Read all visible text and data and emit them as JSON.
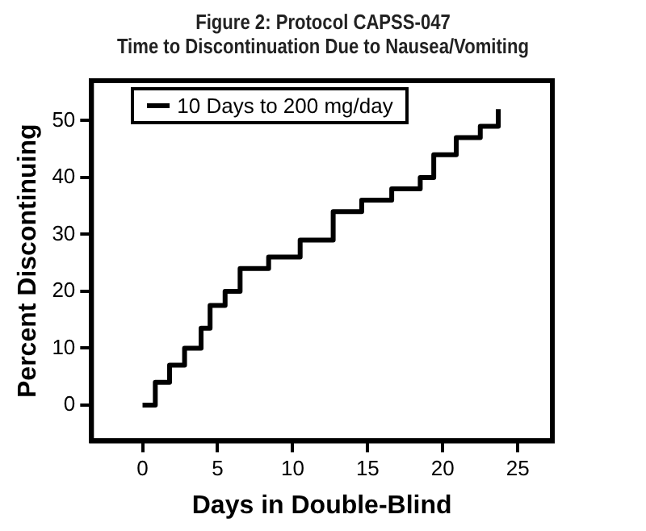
{
  "chart_data": {
    "type": "step",
    "title": "Figure 2:  Protocol CAPSS-047",
    "subtitle": "Time to Discontinuation Due to Nausea/Vomiting",
    "xlabel": "Days in Double-Blind",
    "ylabel": "Percent Discontinuing",
    "x": [
      0,
      0.85,
      1.8,
      2.8,
      3.9,
      4.5,
      5.5,
      6.5,
      8.4,
      10.5,
      12.7,
      14.6,
      16.6,
      18.5,
      19.4,
      20.9,
      22.5,
      23.7
    ],
    "series": [
      {
        "name": "10 Days to 200 mg/day",
        "color": "#000000",
        "values": [
          0,
          4,
          7,
          10,
          13.5,
          17.5,
          20,
          24,
          26,
          29,
          34,
          36,
          38,
          40,
          44,
          47,
          49,
          52
        ]
      }
    ],
    "xlim": [
      -3.4,
      27.3
    ],
    "ylim": [
      -6.3,
      57
    ],
    "xticks": [
      0,
      5,
      10,
      15,
      20,
      25
    ],
    "yticks": [
      0,
      10,
      20,
      30,
      40,
      50
    ],
    "grid": false,
    "legend": "top left",
    "marker": "none",
    "line_style": "solid"
  }
}
